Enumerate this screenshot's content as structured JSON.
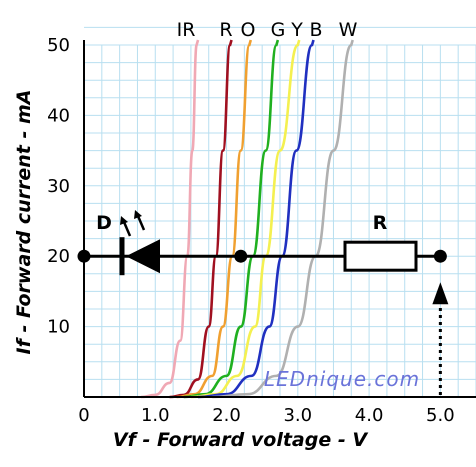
{
  "chart_data": {
    "type": "line",
    "xlabel": "Vf - Forward voltage - V",
    "ylabel": "If - Forward current - mA",
    "xlim": [
      0,
      5.5
    ],
    "ylim": [
      0,
      50
    ],
    "x_ticks": [
      "0",
      "1.0",
      "2.0",
      "3.0",
      "4.0",
      "5.0"
    ],
    "y_ticks": [
      "10",
      "20",
      "30",
      "40",
      "50"
    ],
    "grid": true,
    "series": [
      {
        "name": "IR",
        "color": "#f0a8b4",
        "points": [
          [
            0.8,
            0
          ],
          [
            1.0,
            0.3
          ],
          [
            1.2,
            2
          ],
          [
            1.35,
            8
          ],
          [
            1.45,
            20
          ],
          [
            1.52,
            35
          ],
          [
            1.58,
            50
          ]
        ]
      },
      {
        "name": "R",
        "color": "#a01020",
        "points": [
          [
            1.2,
            0
          ],
          [
            1.4,
            0.3
          ],
          [
            1.6,
            2.5
          ],
          [
            1.75,
            10
          ],
          [
            1.85,
            20
          ],
          [
            1.95,
            35
          ],
          [
            2.05,
            50
          ]
        ]
      },
      {
        "name": "O",
        "color": "#f0a030",
        "points": [
          [
            1.3,
            0
          ],
          [
            1.55,
            0.4
          ],
          [
            1.8,
            3
          ],
          [
            1.95,
            10
          ],
          [
            2.08,
            20
          ],
          [
            2.2,
            35
          ],
          [
            2.32,
            50
          ]
        ]
      },
      {
        "name": "G",
        "color": "#20b020",
        "points": [
          [
            1.4,
            0
          ],
          [
            1.7,
            0.4
          ],
          [
            2.0,
            3
          ],
          [
            2.2,
            10
          ],
          [
            2.37,
            20
          ],
          [
            2.55,
            35
          ],
          [
            2.7,
            50
          ]
        ]
      },
      {
        "name": "Y",
        "color": "#f4f050",
        "points": [
          [
            1.5,
            0
          ],
          [
            1.85,
            0.4
          ],
          [
            2.15,
            3
          ],
          [
            2.4,
            10
          ],
          [
            2.55,
            20
          ],
          [
            2.75,
            35
          ],
          [
            3.0,
            50
          ]
        ]
      },
      {
        "name": "B",
        "color": "#2030c0",
        "points": [
          [
            1.6,
            0
          ],
          [
            2.0,
            0.4
          ],
          [
            2.35,
            3
          ],
          [
            2.6,
            10
          ],
          [
            2.78,
            20
          ],
          [
            2.98,
            35
          ],
          [
            3.2,
            50
          ]
        ]
      },
      {
        "name": "W",
        "color": "#b0b0b0",
        "points": [
          [
            1.8,
            0
          ],
          [
            2.3,
            0.4
          ],
          [
            2.7,
            3
          ],
          [
            3.0,
            10
          ],
          [
            3.25,
            20
          ],
          [
            3.5,
            35
          ],
          [
            3.75,
            50
          ]
        ]
      }
    ],
    "annotations": {
      "diode_label": "D",
      "resistor_label": "R",
      "watermark": "LEDnique.com",
      "circuit_level_mA": 20,
      "circuit_start_V": 0,
      "diode_node_V": 2.2,
      "supply_V": 5.0
    }
  }
}
